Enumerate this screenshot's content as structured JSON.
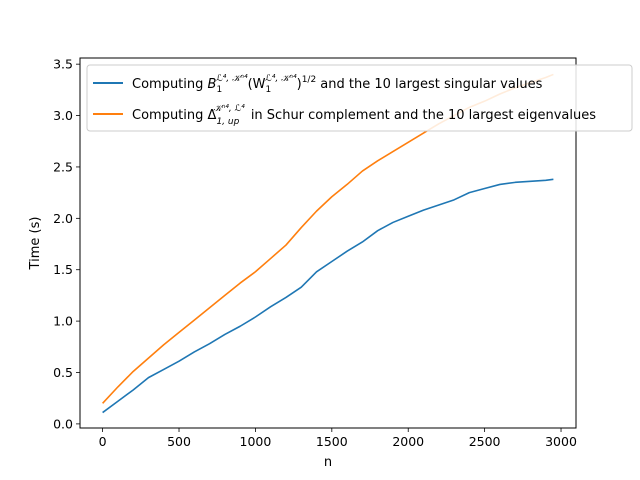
{
  "chart_data": {
    "type": "line",
    "title": "",
    "xlabel": "n",
    "ylabel": "Time (s)",
    "xlim": [
      -148,
      3098
    ],
    "ylim": [
      -0.04,
      3.56
    ],
    "xticks": [
      0,
      500,
      1000,
      1500,
      2000,
      2500,
      3000
    ],
    "yticks": [
      0.0,
      0.5,
      1.0,
      1.5,
      2.0,
      2.5,
      3.0,
      3.5
    ],
    "xtick_labels": [
      "0",
      "500",
      "1000",
      "1500",
      "2000",
      "2500",
      "3000"
    ],
    "ytick_labels": [
      "0.0",
      "0.5",
      "1.0",
      "1.5",
      "2.0",
      "2.5",
      "3.0",
      "3.5"
    ],
    "grid": false,
    "legend_position": "top-right",
    "series": [
      {
        "name": "Computing B_1^{L4,Kn4}(W_1^{L4,Kn4})^{1/2} and the 10 largest singular values",
        "color": "#1f77b4",
        "x": [
          0,
          100,
          200,
          300,
          400,
          500,
          600,
          700,
          800,
          900,
          1000,
          1100,
          1200,
          1300,
          1400,
          1500,
          1600,
          1700,
          1800,
          1900,
          2000,
          2100,
          2200,
          2300,
          2400,
          2500,
          2600,
          2700,
          2800,
          2900,
          2950
        ],
        "y": [
          0.11,
          0.22,
          0.33,
          0.45,
          0.53,
          0.61,
          0.7,
          0.78,
          0.87,
          0.95,
          1.04,
          1.14,
          1.23,
          1.33,
          1.48,
          1.58,
          1.68,
          1.77,
          1.88,
          1.96,
          2.02,
          2.08,
          2.13,
          2.18,
          2.25,
          2.29,
          2.33,
          2.35,
          2.36,
          2.37,
          2.38
        ]
      },
      {
        "name": "Computing Δ_{1,up}^{Kn4,L4} in Schur complement and the 10 largest eigenvalues",
        "color": "#ff7f0e",
        "x": [
          0,
          100,
          200,
          300,
          400,
          500,
          600,
          700,
          800,
          900,
          1000,
          1100,
          1200,
          1300,
          1400,
          1500,
          1600,
          1700,
          1800,
          1900,
          2000,
          2100,
          2200,
          2300,
          2400,
          2500,
          2600,
          2700,
          2800,
          2900,
          2950
        ],
        "y": [
          0.2,
          0.36,
          0.51,
          0.64,
          0.77,
          0.89,
          1.01,
          1.13,
          1.25,
          1.37,
          1.48,
          1.61,
          1.74,
          1.91,
          2.07,
          2.21,
          2.33,
          2.46,
          2.56,
          2.65,
          2.74,
          2.83,
          2.92,
          3.0,
          3.08,
          3.14,
          3.21,
          3.27,
          3.32,
          3.37,
          3.4
        ]
      }
    ]
  },
  "legend": {
    "blue_prefix": "Computing ",
    "blue_B": "B",
    "blue_sub1": "1",
    "blue_sup1": "ℒ⁴, 𝒦ⁿ⁴",
    "blue_paren_open": "(W",
    "blue_sub2": "1",
    "blue_sup2": "ℒ⁴, 𝒦ⁿ⁴",
    "blue_paren_close": ")",
    "blue_pow": "1/2",
    "blue_suffix": " and the 10 largest singular values",
    "orange_prefix": "Computing ",
    "orange_delta": "Δ",
    "orange_sub": "1, up",
    "orange_sup": "𝒦ⁿ⁴, ℒ⁴",
    "orange_suffix": " in Schur complement and the 10 largest eigenvalues"
  }
}
